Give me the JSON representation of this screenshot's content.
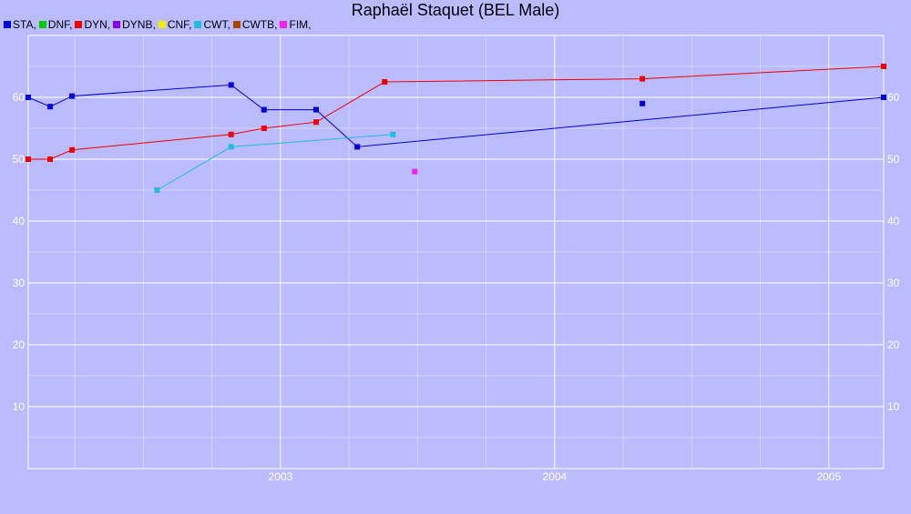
{
  "chart_data": {
    "type": "line",
    "title": "Raphaël Staquet (BEL Male)",
    "xlabel": "",
    "ylabel": "",
    "x_tick_labels": [
      "2003",
      "2004",
      "2005"
    ],
    "x_ticks": [
      2003.0,
      2004.0,
      2005.0
    ],
    "xlim": [
      2002.08,
      2005.2
    ],
    "y_ticks": [
      10,
      20,
      30,
      40,
      50,
      60
    ],
    "y_tick_labels": [
      "10",
      "20",
      "30",
      "40",
      "50",
      "60"
    ],
    "ylim": [
      0,
      70
    ],
    "grid": true,
    "legend_position": "top-left",
    "series": [
      {
        "name": "STA",
        "color": "#0000dd",
        "points": [
          [
            2002.08,
            60
          ],
          [
            2002.16,
            58.5
          ],
          [
            2002.24,
            60.2
          ],
          [
            2002.82,
            62
          ],
          [
            2002.94,
            58
          ],
          [
            2003.13,
            58
          ],
          [
            2003.28,
            52
          ],
          [
            2005.2,
            60
          ]
        ],
        "markers": [
          [
            2002.08,
            60
          ],
          [
            2002.16,
            58.5
          ],
          [
            2002.24,
            60.2
          ],
          [
            2002.82,
            62
          ],
          [
            2002.94,
            58
          ],
          [
            2003.13,
            58
          ],
          [
            2003.28,
            52
          ],
          [
            2004.32,
            59
          ],
          [
            2005.2,
            60
          ]
        ]
      },
      {
        "name": "DNF",
        "color": "#00cc00",
        "points": [],
        "markers": []
      },
      {
        "name": "DYN",
        "color": "#ee0000",
        "points": [
          [
            2002.08,
            50
          ],
          [
            2002.16,
            50
          ],
          [
            2002.24,
            51.5
          ],
          [
            2002.82,
            54
          ],
          [
            2002.94,
            55
          ],
          [
            2003.13,
            56
          ],
          [
            2003.38,
            62.5
          ],
          [
            2004.32,
            63
          ],
          [
            2005.2,
            65
          ]
        ],
        "markers": [
          [
            2002.08,
            50
          ],
          [
            2002.16,
            50
          ],
          [
            2002.24,
            51.5
          ],
          [
            2002.82,
            54
          ],
          [
            2002.94,
            55
          ],
          [
            2003.13,
            56
          ],
          [
            2003.38,
            62.5
          ],
          [
            2004.32,
            63
          ],
          [
            2005.2,
            65
          ]
        ]
      },
      {
        "name": "DYNB",
        "color": "#8800ee",
        "points": [],
        "markers": []
      },
      {
        "name": "CNF",
        "color": "#eeee00",
        "points": [],
        "markers": []
      },
      {
        "name": "CWT",
        "color": "#22bbdd",
        "points": [
          [
            2002.55,
            45
          ],
          [
            2002.82,
            52
          ],
          [
            2003.41,
            54
          ]
        ],
        "markers": [
          [
            2002.55,
            45
          ],
          [
            2002.82,
            52
          ],
          [
            2003.41,
            54
          ]
        ]
      },
      {
        "name": "CWTB",
        "color": "#aa4400",
        "points": [],
        "markers": []
      },
      {
        "name": "FIM",
        "color": "#ee22ee",
        "points": [],
        "markers": [
          [
            2003.49,
            48
          ]
        ]
      }
    ]
  }
}
